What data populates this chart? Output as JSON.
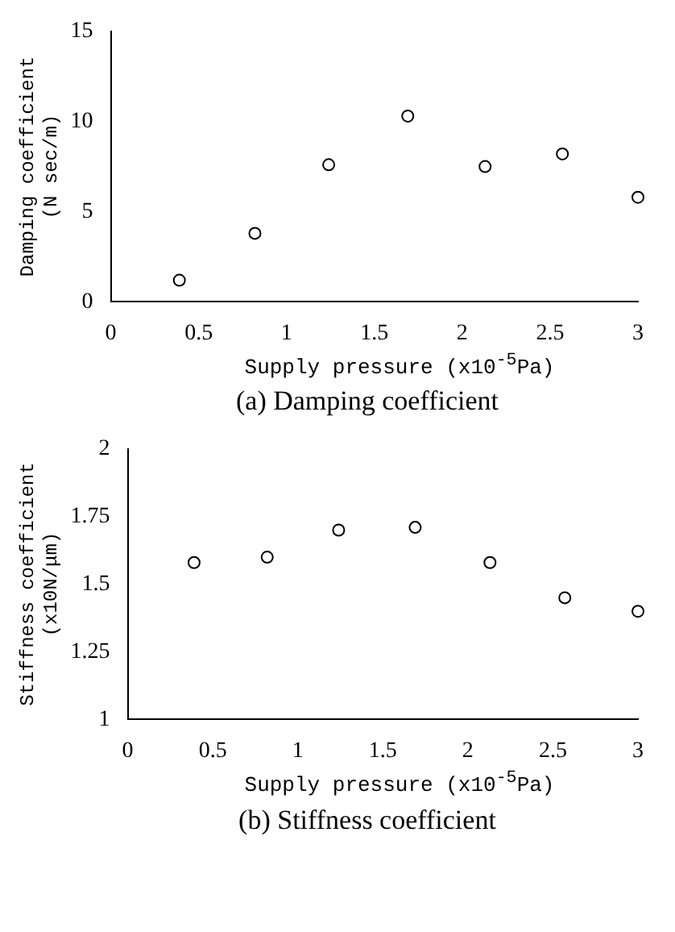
{
  "chart_data": [
    {
      "type": "scatter",
      "title": "(a) Damping coefficient",
      "xlabel": "Supply pressure (x10$^{-5}$Pa)",
      "ylabel": "Damping coefficient (N sec/m)",
      "x": [
        0.39,
        0.82,
        1.24,
        1.69,
        2.13,
        2.57,
        3.0
      ],
      "values": [
        1.2,
        3.8,
        7.6,
        10.3,
        7.5,
        8.2,
        5.8
      ],
      "color": "#000000",
      "marker": "circle",
      "grid": false,
      "legend": false,
      "xlim": [
        0,
        3
      ],
      "xticks": [
        0,
        0.5,
        1,
        1.5,
        2,
        2.5,
        3
      ],
      "ylim": [
        0,
        15
      ],
      "yticks": [
        0,
        5,
        10,
        15
      ]
    },
    {
      "type": "scatter",
      "title": "(b) Stiffness coefficient",
      "xlabel": "Supply pressure (x10$^{-5}$Pa)",
      "ylabel": "Stiffness coefficient (x10N/μm)",
      "x": [
        0.39,
        0.82,
        1.24,
        1.69,
        2.13,
        2.57,
        3.0
      ],
      "values": [
        1.58,
        1.6,
        1.7,
        1.71,
        1.58,
        1.45,
        1.4
      ],
      "color": "#000000",
      "marker": "circle",
      "grid": false,
      "legend": false,
      "xlim": [
        0,
        3
      ],
      "xticks": [
        0,
        0.5,
        1,
        1.5,
        2,
        2.5,
        3
      ],
      "ylim": [
        1,
        2
      ],
      "yticks": [
        1,
        1.25,
        1.5,
        1.75,
        2
      ]
    }
  ]
}
